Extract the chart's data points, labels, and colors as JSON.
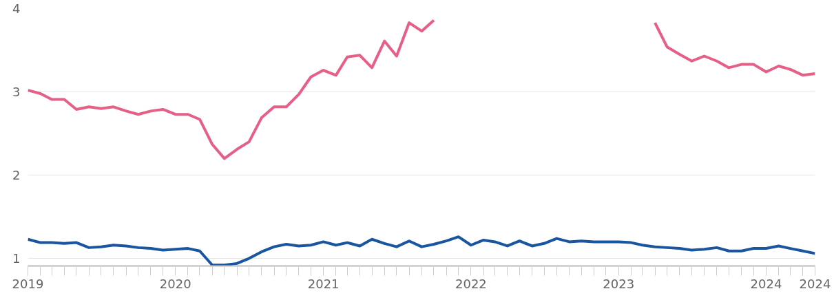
{
  "chart_data": {
    "type": "line",
    "x": [
      "2019-01",
      "2019-02",
      "2019-03",
      "2019-04",
      "2019-05",
      "2019-06",
      "2019-07",
      "2019-08",
      "2019-09",
      "2019-10",
      "2019-11",
      "2019-12",
      "2020-01",
      "2020-02",
      "2020-03",
      "2020-04",
      "2020-05",
      "2020-06",
      "2020-07",
      "2020-08",
      "2020-09",
      "2020-10",
      "2020-11",
      "2020-12",
      "2021-01",
      "2021-02",
      "2021-03",
      "2021-04",
      "2021-05",
      "2021-06",
      "2021-07",
      "2021-08",
      "2021-09",
      "2021-10",
      "2021-11",
      "2021-12",
      "2022-01",
      "2022-02",
      "2022-03",
      "2022-04",
      "2022-05",
      "2022-06",
      "2022-07",
      "2022-08",
      "2022-09",
      "2022-10",
      "2022-11",
      "2022-12",
      "2023-01",
      "2023-02",
      "2023-03",
      "2023-04",
      "2023-05",
      "2023-06",
      "2023-07",
      "2023-08",
      "2023-09",
      "2023-10",
      "2023-11",
      "2023-12",
      "2024-01",
      "2024-02",
      "2024-03",
      "2024-04",
      "2024-05"
    ],
    "series": [
      {
        "color": "#e55f87",
        "values": [
          3.02,
          2.98,
          2.91,
          2.91,
          2.79,
          2.82,
          2.8,
          2.82,
          2.77,
          2.73,
          2.77,
          2.79,
          2.73,
          2.73,
          2.67,
          2.37,
          2.2,
          2.31,
          2.4,
          2.69,
          2.82,
          2.82,
          2.97,
          3.18,
          3.26,
          3.2,
          3.42,
          3.44,
          3.29,
          3.61,
          3.43,
          3.83,
          3.73,
          3.86,
          null,
          null,
          null,
          null,
          null,
          null,
          null,
          null,
          null,
          null,
          null,
          null,
          null,
          null,
          null,
          null,
          null,
          3.83,
          3.54,
          3.45,
          3.37,
          3.43,
          3.37,
          3.29,
          3.33,
          3.33,
          3.24,
          3.31,
          3.27,
          3.2,
          3.22
        ]
      },
      {
        "color": "#1a55a0",
        "values": [
          1.23,
          1.19,
          1.19,
          1.18,
          1.19,
          1.13,
          1.14,
          1.16,
          1.15,
          1.13,
          1.12,
          1.1,
          1.11,
          1.12,
          1.09,
          0.92,
          0.92,
          0.94,
          1.0,
          1.08,
          1.14,
          1.17,
          1.15,
          1.16,
          1.2,
          1.16,
          1.19,
          1.15,
          1.23,
          1.18,
          1.14,
          1.21,
          1.14,
          1.17,
          1.21,
          1.26,
          1.16,
          1.22,
          1.2,
          1.15,
          1.21,
          1.15,
          1.18,
          1.24,
          1.2,
          1.21,
          1.2,
          1.2,
          1.2,
          1.19,
          1.16,
          1.14,
          1.13,
          1.12,
          1.1,
          1.11,
          1.13,
          1.09,
          1.09,
          1.12,
          1.12,
          1.15,
          1.12,
          1.09,
          1.06
        ]
      }
    ],
    "xlim": [
      "2019-01",
      "2024-05"
    ],
    "xticks": [
      {
        "value": "2019-01",
        "label": "2019"
      },
      {
        "value": "2019-02",
        "label": null
      },
      {
        "value": "2019-03",
        "label": null
      },
      {
        "value": "2019-04",
        "label": null
      },
      {
        "value": "2019-05",
        "label": null
      },
      {
        "value": "2019-06",
        "label": null
      },
      {
        "value": "2019-07",
        "label": null
      },
      {
        "value": "2019-08",
        "label": null
      },
      {
        "value": "2019-09",
        "label": null
      },
      {
        "value": "2019-10",
        "label": null
      },
      {
        "value": "2019-11",
        "label": null
      },
      {
        "value": "2019-12",
        "label": null
      },
      {
        "value": "2020-01",
        "label": "2020"
      },
      {
        "value": "2020-02",
        "label": null
      },
      {
        "value": "2020-03",
        "label": null
      },
      {
        "value": "2020-04",
        "label": null
      },
      {
        "value": "2020-05",
        "label": null
      },
      {
        "value": "2020-06",
        "label": null
      },
      {
        "value": "2020-07",
        "label": null
      },
      {
        "value": "2020-08",
        "label": null
      },
      {
        "value": "2020-09",
        "label": null
      },
      {
        "value": "2020-10",
        "label": null
      },
      {
        "value": "2020-11",
        "label": null
      },
      {
        "value": "2020-12",
        "label": null
      },
      {
        "value": "2021-01",
        "label": "2021"
      },
      {
        "value": "2021-02",
        "label": null
      },
      {
        "value": "2021-03",
        "label": null
      },
      {
        "value": "2021-04",
        "label": null
      },
      {
        "value": "2021-05",
        "label": null
      },
      {
        "value": "2021-06",
        "label": null
      },
      {
        "value": "2021-07",
        "label": null
      },
      {
        "value": "2021-08",
        "label": null
      },
      {
        "value": "2021-09",
        "label": null
      },
      {
        "value": "2021-10",
        "label": null
      },
      {
        "value": "2021-11",
        "label": null
      },
      {
        "value": "2021-12",
        "label": null
      },
      {
        "value": "2022-01",
        "label": "2022"
      },
      {
        "value": "2022-02",
        "label": null
      },
      {
        "value": "2022-03",
        "label": null
      },
      {
        "value": "2022-04",
        "label": null
      },
      {
        "value": "2022-05",
        "label": null
      },
      {
        "value": "2022-06",
        "label": null
      },
      {
        "value": "2022-07",
        "label": null
      },
      {
        "value": "2022-08",
        "label": null
      },
      {
        "value": "2022-09",
        "label": null
      },
      {
        "value": "2022-10",
        "label": null
      },
      {
        "value": "2022-11",
        "label": null
      },
      {
        "value": "2022-12",
        "label": null
      },
      {
        "value": "2023-01",
        "label": "2023"
      },
      {
        "value": "2023-02",
        "label": null
      },
      {
        "value": "2023-03",
        "label": null
      },
      {
        "value": "2023-04",
        "label": null
      },
      {
        "value": "2023-05",
        "label": null
      },
      {
        "value": "2023-06",
        "label": null
      },
      {
        "value": "2023-07",
        "label": null
      },
      {
        "value": "2023-08",
        "label": null
      },
      {
        "value": "2023-09",
        "label": null
      },
      {
        "value": "2023-10",
        "label": null
      },
      {
        "value": "2023-11",
        "label": null
      },
      {
        "value": "2023-12",
        "label": null
      },
      {
        "value": "2024-01",
        "label": "2024"
      },
      {
        "value": "2024-02",
        "label": null
      },
      {
        "value": "2024-03",
        "label": null
      },
      {
        "value": "2024-04",
        "label": null
      },
      {
        "value": "2024-05",
        "label": "2024"
      }
    ],
    "ylim": [
      0.91,
      4
    ],
    "yticks": [
      1,
      2,
      3,
      4
    ],
    "grid": "y",
    "line_style": "solid",
    "marker": "none"
  }
}
